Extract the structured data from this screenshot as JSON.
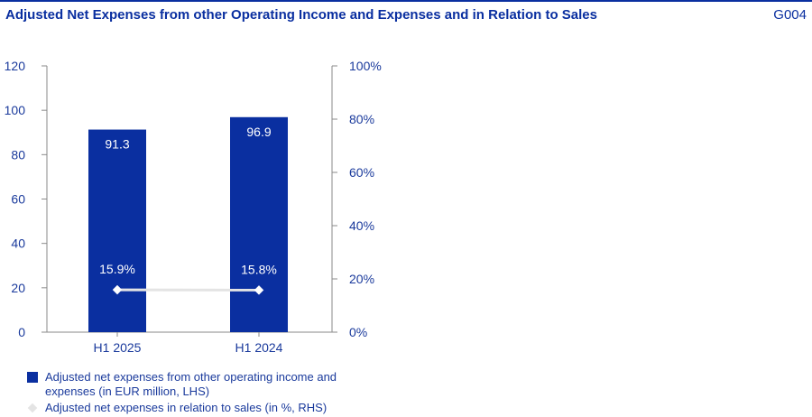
{
  "header": {
    "title": "Adjusted Net Expenses from other Operating Income and Expenses and in Relation to Sales",
    "code": "G004"
  },
  "colors": {
    "bar": "#0a2fa0",
    "line": "#e4e4e4",
    "axis_text": "#1a3a9c",
    "label_on_bar": "#ffffff"
  },
  "chart_data": {
    "type": "bar",
    "categories": [
      "H1 2025",
      "H1 2024"
    ],
    "series": [
      {
        "name": "Adjusted net expenses from other operating income and expenses (in EUR million, LHS)",
        "type": "bar",
        "axis": "left",
        "values": [
          91.3,
          96.9
        ],
        "labels": [
          "91.3",
          "96.9"
        ]
      },
      {
        "name": "Adjusted net expenses in relation to sales (in %, RHS)",
        "type": "line",
        "axis": "right",
        "values": [
          15.9,
          15.8
        ],
        "labels": [
          "15.9%",
          "15.8%"
        ]
      }
    ],
    "y_left": {
      "ylim": [
        0,
        120
      ],
      "ticks": [
        "0",
        "20",
        "40",
        "60",
        "80",
        "100",
        "120"
      ]
    },
    "y_right": {
      "ylim": [
        0,
        100
      ],
      "ticks": [
        "0%",
        "20%",
        "40%",
        "60%",
        "80%",
        "100%"
      ]
    },
    "grid": false,
    "legend_position": "bottom-left"
  },
  "legend": [
    {
      "label": "Adjusted net expenses from other operating income and expenses (in EUR million, LHS)"
    },
    {
      "label": "Adjusted net expenses in relation to sales (in %, RHS)"
    }
  ]
}
